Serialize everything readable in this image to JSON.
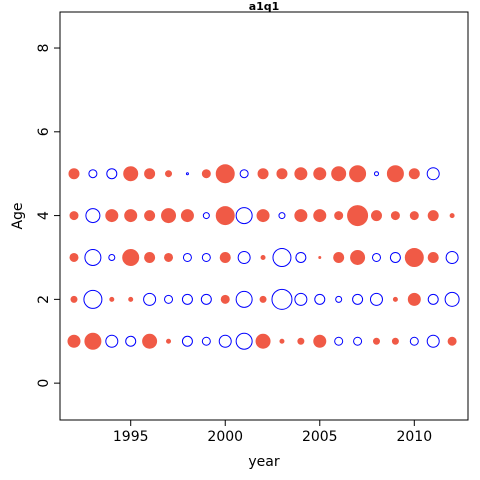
{
  "chart_data": {
    "type": "bubble",
    "title": "a1q1",
    "x_label": "year",
    "y_label": "Age",
    "x": [
      1992,
      1993,
      1994,
      1995,
      1996,
      1997,
      1998,
      1999,
      2000,
      2001,
      2002,
      2003,
      2004,
      2005,
      2006,
      2007,
      2008,
      2009,
      2010,
      2011,
      2012
    ],
    "y": [
      1,
      2,
      3,
      4,
      5
    ],
    "values": [
      [
        0.6,
        0.8,
        -0.6,
        -0.5,
        0.7,
        0.2,
        -0.5,
        -0.4,
        -0.6,
        -0.8,
        0.7,
        0.2,
        0.3,
        0.6,
        -0.4,
        -0.4,
        0.3,
        0.3,
        -0.4,
        -0.6,
        0.4
      ],
      [
        0.3,
        -0.9,
        0.2,
        0.2,
        -0.6,
        -0.4,
        -0.5,
        -0.5,
        0.4,
        -0.8,
        0.3,
        -1.0,
        -0.6,
        -0.5,
        -0.3,
        -0.5,
        -0.6,
        0.2,
        0.6,
        -0.5,
        -0.7
      ],
      [
        0.4,
        -0.8,
        -0.3,
        0.8,
        0.5,
        0.4,
        -0.4,
        -0.4,
        0.5,
        -0.6,
        0.2,
        -0.9,
        -0.5,
        0.1,
        0.5,
        0.7,
        -0.4,
        -0.5,
        0.9,
        0.5,
        -0.6
      ],
      [
        0.4,
        -0.7,
        0.6,
        0.6,
        0.5,
        0.7,
        0.6,
        -0.3,
        0.9,
        -0.8,
        0.6,
        -0.3,
        0.6,
        0.6,
        0.4,
        1.0,
        0.5,
        0.4,
        0.4,
        0.5,
        0.2
      ],
      [
        0.5,
        -0.4,
        -0.5,
        0.7,
        0.5,
        0.3,
        -0.1,
        0.4,
        0.9,
        -0.4,
        0.5,
        0.5,
        0.6,
        0.6,
        0.7,
        0.8,
        -0.2,
        0.8,
        0.5,
        -0.6,
        null
      ]
    ],
    "positive_color": "#f05a46",
    "negative_color": "#0000ff",
    "xlim": [
      1991.26,
      2012.84
    ],
    "ylim": [
      -0.88,
      8.86
    ],
    "xticks": [
      1995,
      2000,
      2005,
      2010
    ],
    "yticks": [
      0,
      2,
      4,
      6,
      8
    ]
  }
}
